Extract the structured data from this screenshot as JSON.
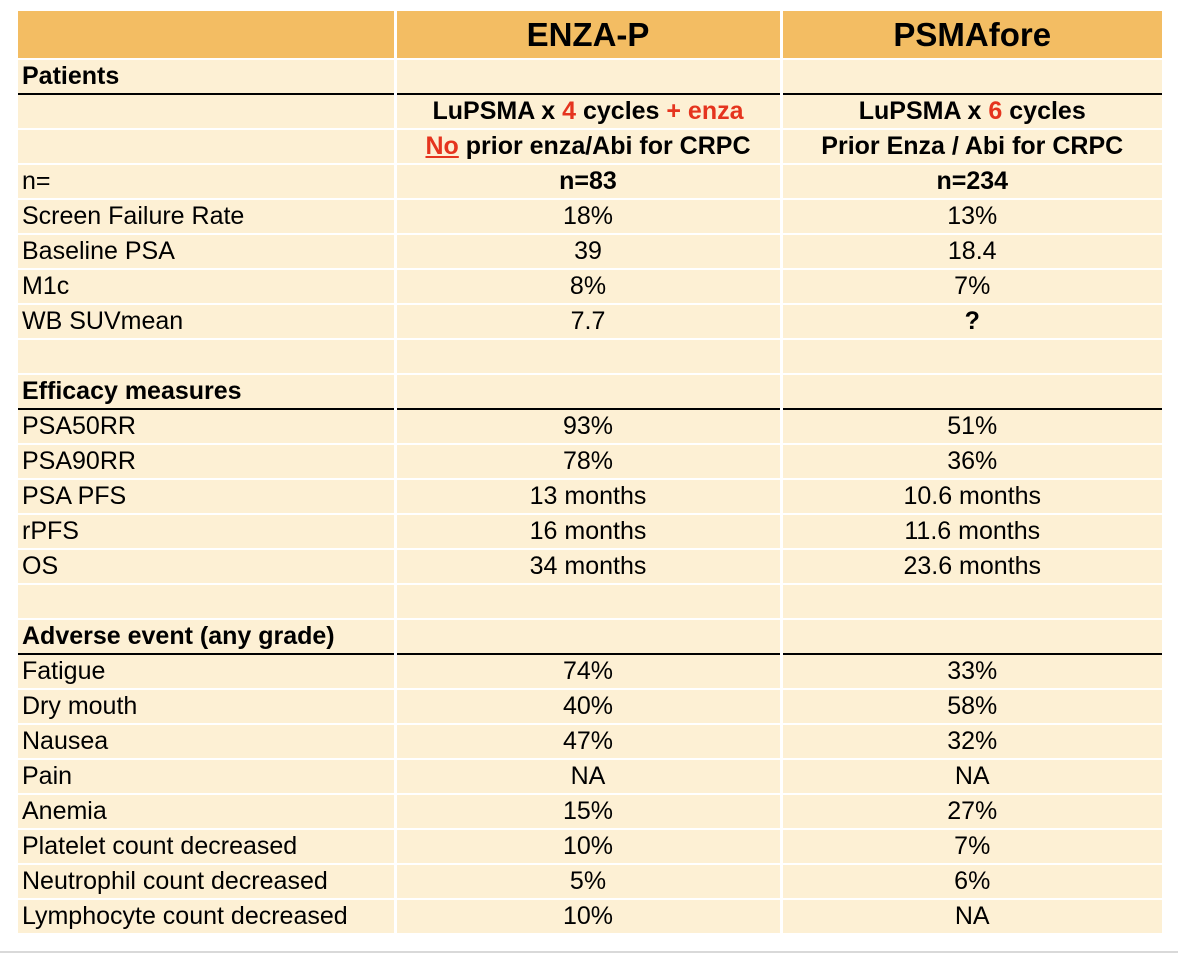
{
  "chart_data": {
    "type": "table",
    "columns": [
      "",
      "ENZA-P",
      "PSMAfore"
    ],
    "sections": {
      "patients": "Patients",
      "efficacy": "Efficacy measures",
      "adverse": "Adverse event (any grade)"
    },
    "regimen": {
      "enza_p": {
        "line1_pre": "LuPSMA x ",
        "line1_num": "4",
        "line1_mid": " cycles ",
        "line1_plus": "+ enza",
        "line2_no": "No",
        "line2_rest": " prior enza/Abi for CRPC"
      },
      "psmafore": {
        "line1_pre": "LuPSMA x ",
        "line1_num": "6",
        "line1_post": " cycles",
        "line2": "Prior Enza / Abi for CRPC"
      }
    },
    "rows": {
      "n": [
        "n=",
        "n=83",
        "n=234"
      ],
      "screen_failure": [
        "Screen Failure Rate",
        "18%",
        "13%"
      ],
      "baseline_psa": [
        "Baseline PSA",
        "39",
        "18.4"
      ],
      "m1c": [
        "M1c",
        "8%",
        "7%"
      ],
      "wb_suvmean": [
        "WB SUVmean",
        "7.7",
        "?"
      ],
      "psa50rr": [
        "PSA50RR",
        "93%",
        "51%"
      ],
      "psa90rr": [
        "PSA90RR",
        "78%",
        "36%"
      ],
      "psa_pfs": [
        "PSA PFS",
        "13 months",
        "10.6 months"
      ],
      "rpfs": [
        "rPFS",
        "16 months",
        "11.6 months"
      ],
      "os": [
        "OS",
        "34 months",
        "23.6 months"
      ],
      "fatigue": [
        "Fatigue",
        "74%",
        "33%"
      ],
      "dry_mouth": [
        "Dry mouth",
        "40%",
        "58%"
      ],
      "nausea": [
        "Nausea",
        "47%",
        "32%"
      ],
      "pain": [
        "Pain",
        "NA",
        "NA"
      ],
      "anemia": [
        "Anemia",
        "15%",
        "27%"
      ],
      "platelet": [
        "Platelet count decreased",
        "10%",
        "7%"
      ],
      "neutrophil": [
        "Neutrophil count decreased",
        "5%",
        "6%"
      ],
      "lymphocyte": [
        "Lymphocyte count decreased",
        "10%",
        "NA"
      ]
    },
    "colors": {
      "header_fill": "#f3bd63",
      "cell_fill": "#fdf0d4",
      "highlight_text": "#e5341e"
    }
  }
}
